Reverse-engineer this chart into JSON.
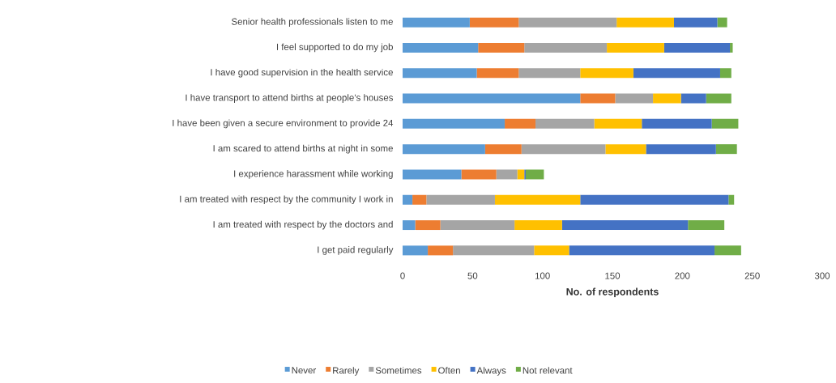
{
  "chart_data": {
    "type": "bar",
    "orientation": "horizontal",
    "stacked": true,
    "xlabel": "No. of respondents",
    "categories": [
      "Senior health professionals listen to me",
      "I feel supported to do my job",
      "I have good supervision in the health service",
      "I have transport to attend births at people’s houses",
      "I have been given a secure environment to provide 24",
      "I am scared to attend births at night in some",
      "I experience harassment while working",
      "I am treated with respect by the community I work in",
      "I am treated with respect by the doctors and",
      "I get paid regularly"
    ],
    "series": [
      {
        "name": "Never",
        "color": "#5b9bd5",
        "values": [
          48,
          54,
          53,
          127,
          73,
          59,
          42,
          7,
          9,
          18
        ]
      },
      {
        "name": "Rarely",
        "color": "#ed7d31",
        "values": [
          35,
          33,
          30,
          25,
          22,
          26,
          25,
          10,
          18,
          18
        ]
      },
      {
        "name": "Sometimes",
        "color": "#a5a5a5",
        "values": [
          70,
          59,
          44,
          27,
          42,
          60,
          15,
          49,
          53,
          58
        ]
      },
      {
        "name": "Often",
        "color": "#ffc000",
        "values": [
          41,
          41,
          38,
          20,
          34,
          29,
          5,
          61,
          34,
          25
        ]
      },
      {
        "name": "Always",
        "color": "#4472c4",
        "values": [
          31,
          47,
          62,
          18,
          50,
          50,
          1,
          106,
          90,
          104
        ]
      },
      {
        "name": "Not relevant",
        "color": "#70ad47",
        "values": [
          7,
          2,
          8,
          18,
          19,
          15,
          13,
          4,
          26,
          19
        ]
      }
    ],
    "xlim": [
      0,
      300
    ],
    "xticks": [
      0,
      50,
      100,
      150,
      200,
      250,
      300
    ],
    "legend": "bottom"
  }
}
